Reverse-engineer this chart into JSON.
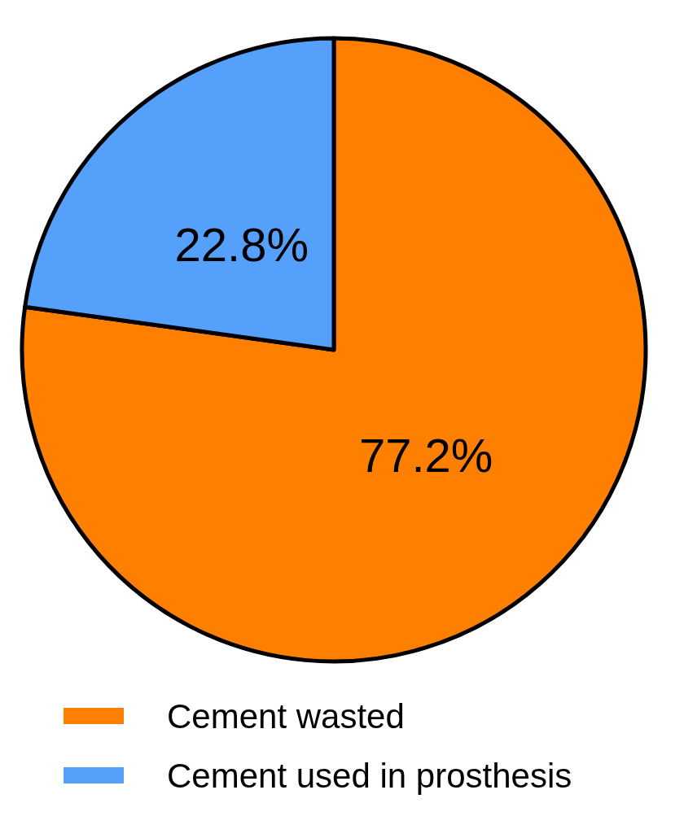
{
  "chart_data": {
    "type": "pie",
    "categories": [
      "Cement wasted",
      "Cement used in prosthesis"
    ],
    "values": [
      77.2,
      22.8
    ],
    "colors": [
      "#ff8000",
      "#55a0fb"
    ],
    "value_labels": [
      "77.2%",
      "22.8%"
    ],
    "legend": "bottom"
  }
}
